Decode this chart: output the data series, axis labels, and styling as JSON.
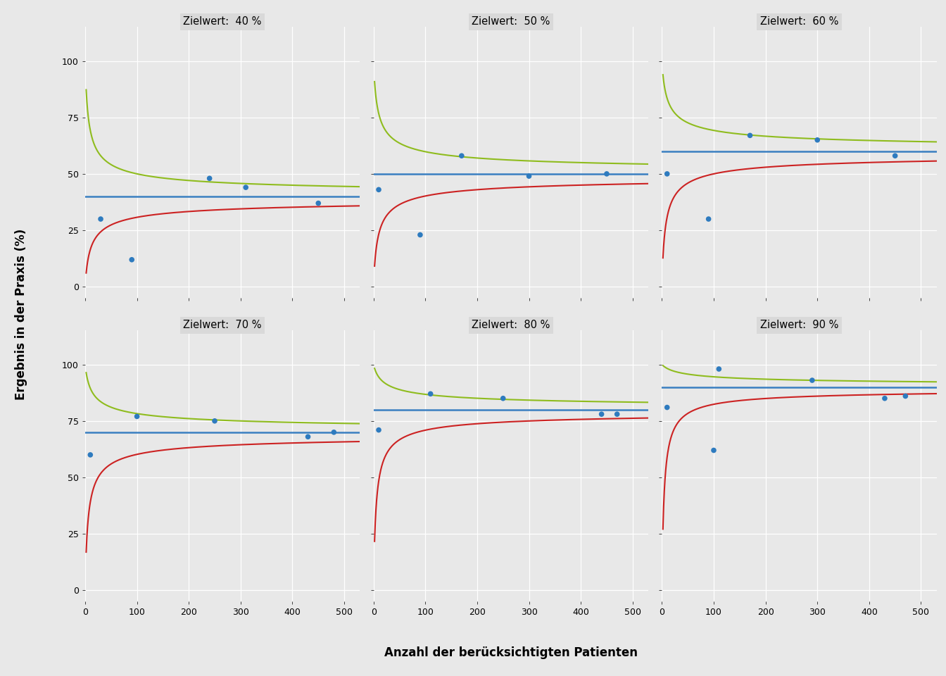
{
  "targets": [
    40,
    50,
    60,
    70,
    80,
    90
  ],
  "titles": [
    "Zielwert:  40 %",
    "Zielwert:  50 %",
    "Zielwert:  60 %",
    "Zielwert:  70 %",
    "Zielwert:  80 %",
    "Zielwert:  90 %"
  ],
  "xlim": [
    0,
    530
  ],
  "ylim": [
    -5,
    115
  ],
  "yticks": [
    0,
    25,
    50,
    75,
    100
  ],
  "xticks": [
    0,
    100,
    200,
    300,
    400,
    500
  ],
  "blue_color": "#3a7fc1",
  "green_color": "#8fbc1e",
  "red_color": "#cc2222",
  "dot_color": "#2e7bbf",
  "plot_bg_color": "#e8e8e8",
  "strip_bg_color": "#d9d9d9",
  "fig_bg_color": "#e8e8e8",
  "grid_color": "#ffffff",
  "xlabel": "Anzahl der berücksichtigten Patienten",
  "ylabel": "Ergebnis in der Praxis (%)",
  "data_points": {
    "40": [
      [
        30,
        30
      ],
      [
        90,
        12
      ],
      [
        240,
        48
      ],
      [
        310,
        44
      ],
      [
        450,
        37
      ]
    ],
    "50": [
      [
        10,
        43
      ],
      [
        90,
        23
      ],
      [
        170,
        58
      ],
      [
        300,
        49
      ],
      [
        450,
        50
      ]
    ],
    "60": [
      [
        10,
        50
      ],
      [
        90,
        30
      ],
      [
        170,
        67
      ],
      [
        300,
        65
      ],
      [
        450,
        58
      ]
    ],
    "70": [
      [
        10,
        60
      ],
      [
        100,
        77
      ],
      [
        250,
        75
      ],
      [
        430,
        68
      ],
      [
        480,
        70
      ]
    ],
    "80": [
      [
        10,
        71
      ],
      [
        110,
        87
      ],
      [
        250,
        85
      ],
      [
        440,
        78
      ],
      [
        470,
        78
      ]
    ],
    "90": [
      [
        10,
        81
      ],
      [
        100,
        62
      ],
      [
        110,
        98
      ],
      [
        290,
        93
      ],
      [
        430,
        85
      ],
      [
        470,
        86
      ]
    ]
  }
}
